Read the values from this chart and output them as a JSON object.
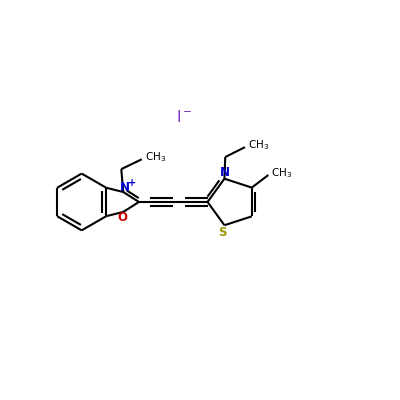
{
  "bg_color": "#ffffff",
  "bond_color": "#000000",
  "N_color": "#0000cc",
  "O_color": "#cc0000",
  "S_color": "#999900",
  "I_color": "#7b2fbe",
  "line_width": 1.5,
  "figsize": [
    4.0,
    4.0
  ],
  "dpi": 100,
  "xlim": [
    0,
    10
  ],
  "ylim": [
    0,
    10
  ]
}
